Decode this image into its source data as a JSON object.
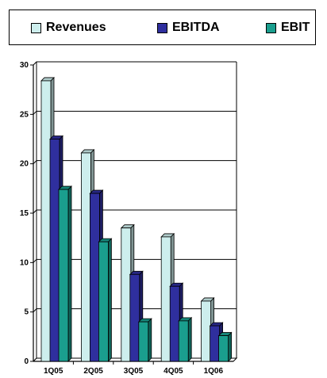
{
  "chart_data": {
    "type": "bar",
    "style": "3d-clustered",
    "categories": [
      "1Q05",
      "2Q05",
      "3Q05",
      "4Q05",
      "1Q06"
    ],
    "series": [
      {
        "name": "Revenues",
        "values": [
          28.4,
          21.1,
          13.5,
          12.6,
          6.1
        ],
        "color": "#cdeeed"
      },
      {
        "name": "EBITDA",
        "values": [
          22.5,
          17.0,
          8.8,
          7.6,
          3.6
        ],
        "color": "#2f2f9e"
      },
      {
        "name": "EBIT",
        "values": [
          17.4,
          12.1,
          4.0,
          4.1,
          2.6
        ],
        "color": "#1a9e8e"
      }
    ],
    "ylim": [
      0,
      30
    ],
    "yticks": [
      "0",
      "5",
      "10",
      "15",
      "20",
      "25",
      "30"
    ],
    "grid": true,
    "legend_position": "top"
  }
}
